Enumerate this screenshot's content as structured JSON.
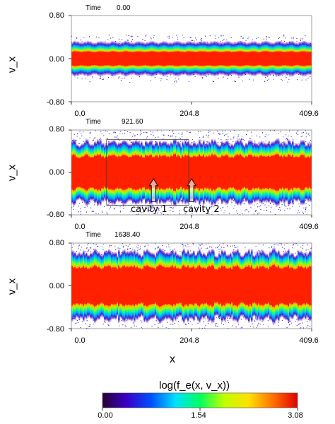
{
  "chart_data": [
    {
      "type": "heatmap",
      "time_label": "Time",
      "time_value": "0.00",
      "ylabel": "v_x",
      "xlabel": "",
      "xlim": [
        0.0,
        409.6
      ],
      "ylim": [
        -0.8,
        0.8
      ],
      "x_ticks": [
        "0.0",
        "204.8",
        "409.6"
      ],
      "y_ticks": [
        "0.80",
        "0.00",
        "-0.80"
      ],
      "core_halfwidth": 0.12,
      "green_halfwidth": 0.2,
      "cyan_halfwidth": 0.26,
      "noise": 0.02
    },
    {
      "type": "heatmap",
      "time_label": "Time",
      "time_value": "921.60",
      "ylabel": "v_x",
      "xlabel": "",
      "xlim": [
        0.0,
        409.6
      ],
      "ylim": [
        -0.8,
        0.8
      ],
      "x_ticks": [
        "0.0",
        "204.8",
        "409.6"
      ],
      "y_ticks": [
        "0.80",
        "0.00",
        "-0.80"
      ],
      "core_halfwidth": 0.3,
      "green_halfwidth": 0.42,
      "cyan_halfwidth": 0.52,
      "noise": 0.07,
      "annotations": [
        {
          "text": "cavity 1",
          "x": 140.0
        },
        {
          "text": "cavity 2",
          "x": 205.0
        }
      ]
    },
    {
      "type": "heatmap",
      "time_label": "Time",
      "time_value": "1638.40",
      "ylabel": "v_x",
      "xlabel": "x",
      "xlim": [
        0.0,
        409.6
      ],
      "ylim": [
        -0.8,
        0.8
      ],
      "x_ticks": [
        "0.0",
        "204.8",
        "409.6"
      ],
      "y_ticks": [
        "0.80",
        "0.00",
        "-0.80"
      ],
      "core_halfwidth": 0.34,
      "green_halfwidth": 0.48,
      "cyan_halfwidth": 0.58,
      "noise": 0.08
    }
  ],
  "colorbar": {
    "title": "log(f_e(x, v_x))",
    "ticks": [
      "0.00",
      "1.54",
      "3.08"
    ],
    "range": [
      0.0,
      3.08
    ],
    "colors": [
      "#2a0033",
      "#3a00c8",
      "#0050ff",
      "#00e0ff",
      "#00ff60",
      "#c0ff00",
      "#ffe000",
      "#ff7000",
      "#e00000"
    ]
  }
}
